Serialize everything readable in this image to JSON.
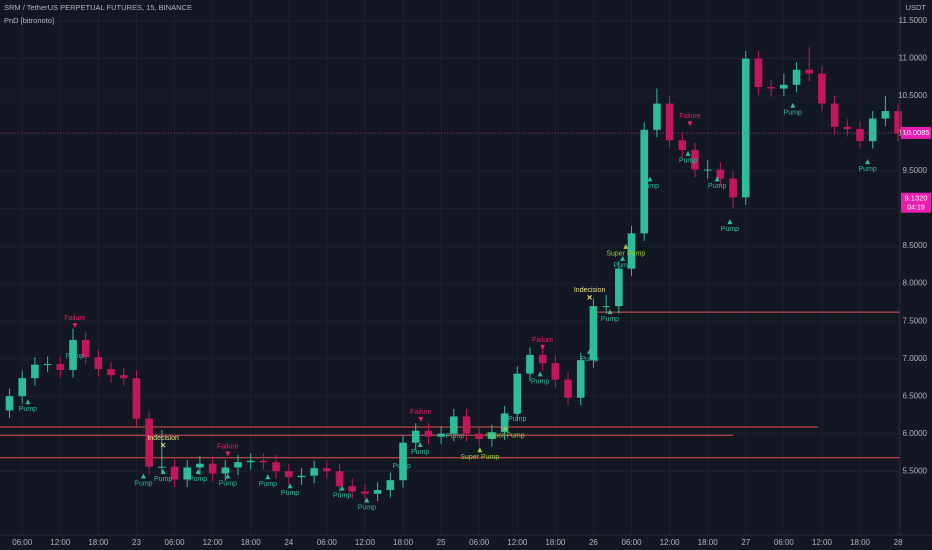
{
  "chart_data": {
    "type": "candlestick",
    "title": "SRM / TetherUS PERPETUAL FUTURES, 15, BINANCE",
    "subtitle": "PnD [bitronoto]",
    "y_unit": "USDT",
    "up_color": "#2ebd9b",
    "down_color": "#c2185b",
    "x": [
      4,
      6,
      8,
      10,
      12,
      14,
      16,
      18,
      20,
      22,
      24,
      26,
      28,
      30,
      32,
      34,
      36,
      38,
      40,
      42,
      44,
      46,
      48,
      50,
      52,
      54,
      56,
      58,
      60,
      62,
      64,
      66,
      68,
      70,
      72,
      74,
      76,
      78,
      80,
      82,
      84,
      86,
      88,
      90,
      92,
      94,
      96,
      98,
      100,
      102,
      104,
      106,
      108,
      110,
      112,
      114,
      116,
      118,
      120,
      122,
      124,
      126,
      128,
      130,
      132,
      134,
      136,
      138,
      140,
      142,
      144
    ],
    "open": [
      6.31,
      6.5,
      6.74,
      6.92,
      6.93,
      6.85,
      7.25,
      7.02,
      6.86,
      6.78,
      6.74,
      6.2,
      5.56,
      5.56,
      5.39,
      5.55,
      5.6,
      5.47,
      5.55,
      5.62,
      5.64,
      5.62,
      5.5,
      5.42,
      5.44,
      5.54,
      5.5,
      5.3,
      5.23,
      5.2,
      5.25,
      5.38,
      5.88,
      6.04,
      5.96,
      6.0,
      6.23,
      6.0,
      5.93,
      6.02,
      6.27,
      6.8,
      7.05,
      6.94,
      6.72,
      6.48,
      6.98,
      7.7,
      7.7,
      8.2,
      8.67,
      10.05,
      10.4,
      9.91,
      9.78,
      9.52,
      9.52,
      9.4,
      9.15,
      11.0,
      10.62,
      10.6,
      10.65,
      10.85,
      10.8,
      10.4,
      10.09,
      10.06,
      9.9,
      10.2,
      10.3
    ],
    "high": [
      6.6,
      6.84,
      7.02,
      7.03,
      7.03,
      7.4,
      7.35,
      7.12,
      6.96,
      6.88,
      6.84,
      6.3,
      6.05,
      5.66,
      5.65,
      5.7,
      5.7,
      5.65,
      5.72,
      5.74,
      5.74,
      5.72,
      5.6,
      5.54,
      5.64,
      5.64,
      5.6,
      5.4,
      5.33,
      5.35,
      5.48,
      5.98,
      6.14,
      6.14,
      6.1,
      6.33,
      6.33,
      6.1,
      6.12,
      6.37,
      6.9,
      7.15,
      7.15,
      7.04,
      6.82,
      7.08,
      7.8,
      7.85,
      8.3,
      8.77,
      10.15,
      10.6,
      10.5,
      10.01,
      9.88,
      9.65,
      9.62,
      9.5,
      11.1,
      11.1,
      10.72,
      10.8,
      10.95,
      11.15,
      10.9,
      10.5,
      10.19,
      10.16,
      10.3,
      10.5,
      10.4
    ],
    "low": [
      6.21,
      6.4,
      6.64,
      6.82,
      6.75,
      6.75,
      6.92,
      6.76,
      6.68,
      6.64,
      6.1,
      5.46,
      5.46,
      5.29,
      5.29,
      5.45,
      5.37,
      5.37,
      5.45,
      5.52,
      5.52,
      5.4,
      5.32,
      5.32,
      5.34,
      5.4,
      5.2,
      5.13,
      5.1,
      5.1,
      5.15,
      5.28,
      5.78,
      5.86,
      5.86,
      5.9,
      5.9,
      5.83,
      5.83,
      5.92,
      6.17,
      6.7,
      6.84,
      6.62,
      6.38,
      6.38,
      6.88,
      7.6,
      7.6,
      8.1,
      8.57,
      9.95,
      9.81,
      9.68,
      9.42,
      9.4,
      9.3,
      9.0,
      9.05,
      10.52,
      10.5,
      10.5,
      10.55,
      10.7,
      10.3,
      9.99,
      9.96,
      9.8,
      9.8,
      10.1,
      9.9
    ],
    "close": [
      6.5,
      6.74,
      6.92,
      6.93,
      6.85,
      7.25,
      7.02,
      6.86,
      6.78,
      6.74,
      6.2,
      5.56,
      5.56,
      5.39,
      5.55,
      5.6,
      5.47,
      5.55,
      5.62,
      5.64,
      5.62,
      5.5,
      5.42,
      5.44,
      5.54,
      5.5,
      5.3,
      5.23,
      5.2,
      5.25,
      5.38,
      5.88,
      6.04,
      5.96,
      6.0,
      6.23,
      6.0,
      5.93,
      6.02,
      6.27,
      6.8,
      7.05,
      6.94,
      6.72,
      6.48,
      6.98,
      7.7,
      7.7,
      8.2,
      8.67,
      10.05,
      10.4,
      9.91,
      9.78,
      9.52,
      9.52,
      9.4,
      9.15,
      11.0,
      10.62,
      10.6,
      10.65,
      10.85,
      10.8,
      10.4,
      10.09,
      10.06,
      9.9,
      10.2,
      10.3,
      10.0
    ],
    "xlim": [
      2.5,
      144.3
    ],
    "xticks": [
      {
        "value": 6,
        "label": "06:00"
      },
      {
        "value": 12,
        "label": "12:00"
      },
      {
        "value": 18,
        "label": "18:00"
      },
      {
        "value": 24,
        "label": "23"
      },
      {
        "value": 30,
        "label": "06:00"
      },
      {
        "value": 36,
        "label": "12:00"
      },
      {
        "value": 42,
        "label": "18:00"
      },
      {
        "value": 48,
        "label": "24"
      },
      {
        "value": 54,
        "label": "06:00"
      },
      {
        "value": 60,
        "label": "12:00"
      },
      {
        "value": 66,
        "label": "18:00"
      },
      {
        "value": 72,
        "label": "25"
      },
      {
        "value": 78,
        "label": "06:00"
      },
      {
        "value": 84,
        "label": "12:00"
      },
      {
        "value": 90,
        "label": "18:00"
      },
      {
        "value": 96,
        "label": "26"
      },
      {
        "value": 102,
        "label": "06:00"
      },
      {
        "value": 108,
        "label": "12:00"
      },
      {
        "value": 114,
        "label": "18:00"
      },
      {
        "value": 120,
        "label": "27"
      },
      {
        "value": 126,
        "label": "06:00"
      },
      {
        "value": 132,
        "label": "12:00"
      },
      {
        "value": 138,
        "label": "18:00"
      },
      {
        "value": 144,
        "label": "28"
      }
    ],
    "ylim": [
      4.65,
      11.78
    ],
    "yticks": [
      {
        "value": 5.5,
        "label": "5.5000"
      },
      {
        "value": 6,
        "label": "6.0000"
      },
      {
        "value": 6.5,
        "label": "6.5000"
      },
      {
        "value": 7,
        "label": "7.0000"
      },
      {
        "value": 7.5,
        "label": "7.5000"
      },
      {
        "value": 8,
        "label": "8.0000"
      },
      {
        "value": 8.5,
        "label": "8.5000"
      },
      {
        "value": 9,
        "label": "9.0000"
      },
      {
        "value": 9.5,
        "label": "9.5000"
      },
      {
        "value": 10,
        "label": "10.0000"
      },
      {
        "value": 10.5,
        "label": "10.5000"
      },
      {
        "value": 11,
        "label": "11.0000"
      },
      {
        "value": 11.5,
        "label": "11.5000"
      }
    ],
    "levels": [
      {
        "value": 7.62,
        "from": 95.4,
        "to": 144.3,
        "color": "#e0524f"
      },
      {
        "value": 6.09,
        "from": 2.5,
        "to": 131.4,
        "color": "#e0524f"
      },
      {
        "value": 5.98,
        "from": 2.5,
        "to": 118.0,
        "color": "#e0524f"
      },
      {
        "value": 5.68,
        "from": 2.5,
        "to": 144.3,
        "color": "#e0524f"
      }
    ],
    "annotations": [
      {
        "text": "Pump",
        "x": 6.9,
        "y": 6.34,
        "color": "#2ebd9b",
        "marker": "up"
      },
      {
        "text": "Pump",
        "x": 14.3,
        "y": 7.05,
        "color": "#2ebd9b",
        "marker": "up"
      },
      {
        "text": "Pump",
        "x": 25.1,
        "y": 5.35,
        "color": "#2ebd9b",
        "marker": "up"
      },
      {
        "text": "Pump",
        "x": 28.2,
        "y": 5.41,
        "color": "#2ebd9b",
        "marker": "up"
      },
      {
        "text": "Pump",
        "x": 33.7,
        "y": 5.41,
        "color": "#2ebd9b",
        "marker": "up"
      },
      {
        "text": "Pump",
        "x": 38.4,
        "y": 5.35,
        "color": "#2ebd9b",
        "marker": "up"
      },
      {
        "text": "Pump",
        "x": 44.7,
        "y": 5.34,
        "color": "#2ebd9b",
        "marker": "up"
      },
      {
        "text": "Pump",
        "x": 48.2,
        "y": 5.22,
        "color": "#2ebd9b",
        "marker": "up"
      },
      {
        "text": "Pump",
        "x": 56.4,
        "y": 5.19,
        "color": "#2ebd9b",
        "marker": "up"
      },
      {
        "text": "Pump",
        "x": 60.3,
        "y": 5.03,
        "color": "#2ebd9b",
        "marker": "up"
      },
      {
        "text": "Pump",
        "x": 65.8,
        "y": 5.58,
        "color": "#2ebd9b",
        "marker": "up"
      },
      {
        "text": "Pump",
        "x": 68.7,
        "y": 5.77,
        "color": "#2ebd9b",
        "marker": "up"
      },
      {
        "text": "Pump",
        "x": 74.2,
        "y": 5.98,
        "color": "#2ebd9b",
        "marker": "up"
      },
      {
        "text": "Pump",
        "x": 84.0,
        "y": 6.21,
        "color": "#2ebd9b",
        "marker": "up"
      },
      {
        "text": "Pump",
        "x": 87.6,
        "y": 6.71,
        "color": "#2ebd9b",
        "marker": "up"
      },
      {
        "text": "Pump",
        "x": 95.4,
        "y": 7.01,
        "color": "#2ebd9b",
        "marker": "up"
      },
      {
        "text": "Pump",
        "x": 98.6,
        "y": 7.54,
        "color": "#2ebd9b",
        "marker": "up"
      },
      {
        "text": "Pump",
        "x": 100.6,
        "y": 8.25,
        "color": "#2ebd9b",
        "marker": "up"
      },
      {
        "text": "Pump",
        "x": 104.9,
        "y": 9.31,
        "color": "#2ebd9b",
        "marker": "up"
      },
      {
        "text": "Pump",
        "x": 110.9,
        "y": 9.65,
        "color": "#2ebd9b",
        "marker": "up"
      },
      {
        "text": "Pump",
        "x": 115.5,
        "y": 9.31,
        "color": "#2ebd9b",
        "marker": "up"
      },
      {
        "text": "Pump",
        "x": 117.5,
        "y": 8.74,
        "color": "#2ebd9b",
        "marker": "up"
      },
      {
        "text": "Pump",
        "x": 127.4,
        "y": 10.29,
        "color": "#2ebd9b",
        "marker": "up"
      },
      {
        "text": "Pump",
        "x": 139.2,
        "y": 9.54,
        "color": "#2ebd9b",
        "marker": "up"
      },
      {
        "text": "Super Pump",
        "x": 101.1,
        "y": 8.41,
        "color": "#9ccc3c",
        "marker": "up"
      },
      {
        "text": "Super Pump",
        "x": 82.1,
        "y": 5.99,
        "color": "#9ccc3c",
        "marker": "up"
      },
      {
        "text": "Super Pump",
        "x": 78.1,
        "y": 5.7,
        "color": "#9ccc3c",
        "marker": "up"
      },
      {
        "text": "Failure",
        "x": 14.3,
        "y": 7.54,
        "color": "#e91e63",
        "marker": "down"
      },
      {
        "text": "Failure",
        "x": 38.4,
        "y": 5.83,
        "color": "#e91e63",
        "marker": "down"
      },
      {
        "text": "Failure",
        "x": 68.8,
        "y": 6.29,
        "color": "#e91e63",
        "marker": "down"
      },
      {
        "text": "Failure",
        "x": 88.0,
        "y": 7.25,
        "color": "#e91e63",
        "marker": "down"
      },
      {
        "text": "Failure",
        "x": 111.2,
        "y": 10.23,
        "color": "#e91e63",
        "marker": "down"
      },
      {
        "text": "Indecision",
        "x": 28.2,
        "y": 5.94,
        "color": "#f0e68c",
        "marker": "x"
      },
      {
        "text": "Indecision",
        "x": 95.4,
        "y": 7.91,
        "color": "#f0e68c",
        "marker": "x"
      }
    ],
    "last_price": {
      "value": 10.0085,
      "color": "#e91eb0"
    },
    "price_label": {
      "value": 9.132,
      "label": "9.1320",
      "time": "04:19",
      "color": "#e91eb0"
    }
  }
}
